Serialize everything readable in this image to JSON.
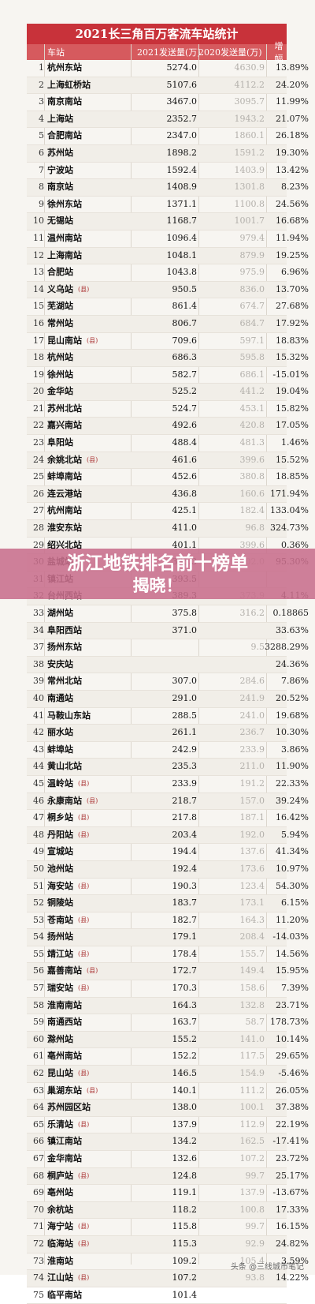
{
  "title": "2021长三角百万客流车站统计",
  "headers": [
    "车站",
    "2021发送量(万)",
    "2020发送量(万)",
    "增幅"
  ],
  "rows": [
    {
      "rank": "1",
      "name": "杭州东站",
      "tag": "",
      "v21": "5274.0",
      "v20": "4630.9",
      "g": "13.89%"
    },
    {
      "rank": "2",
      "name": "上海虹桥站",
      "tag": "",
      "v21": "5107.6",
      "v20": "4112.2",
      "g": "24.20%"
    },
    {
      "rank": "3",
      "name": "南京南站",
      "tag": "",
      "v21": "3467.0",
      "v20": "3095.7",
      "g": "11.99%"
    },
    {
      "rank": "4",
      "name": "上海站",
      "tag": "",
      "v21": "2352.7",
      "v20": "1943.2",
      "g": "21.07%"
    },
    {
      "rank": "5",
      "name": "合肥南站",
      "tag": "",
      "v21": "2347.0",
      "v20": "1860.1",
      "g": "26.18%"
    },
    {
      "rank": "6",
      "name": "苏州站",
      "tag": "",
      "v21": "1898.2",
      "v20": "1591.2",
      "g": "19.30%"
    },
    {
      "rank": "7",
      "name": "宁波站",
      "tag": "",
      "v21": "1592.4",
      "v20": "1403.9",
      "g": "13.42%"
    },
    {
      "rank": "8",
      "name": "南京站",
      "tag": "",
      "v21": "1408.9",
      "v20": "1301.8",
      "g": "8.23%"
    },
    {
      "rank": "9",
      "name": "徐州东站",
      "tag": "",
      "v21": "1371.1",
      "v20": "1100.8",
      "g": "24.56%"
    },
    {
      "rank": "10",
      "name": "无锡站",
      "tag": "",
      "v21": "1168.7",
      "v20": "1001.7",
      "g": "16.68%"
    },
    {
      "rank": "11",
      "name": "温州南站",
      "tag": "",
      "v21": "1096.4",
      "v20": "979.4",
      "g": "11.94%"
    },
    {
      "rank": "12",
      "name": "上海南站",
      "tag": "",
      "v21": "1048.1",
      "v20": "879.9",
      "g": "19.25%"
    },
    {
      "rank": "13",
      "name": "合肥站",
      "tag": "",
      "v21": "1043.8",
      "v20": "975.9",
      "g": "6.96%"
    },
    {
      "rank": "14",
      "name": "义乌站",
      "tag": "(县)",
      "v21": "950.5",
      "v20": "836.0",
      "g": "13.70%"
    },
    {
      "rank": "15",
      "name": "芜湖站",
      "tag": "",
      "v21": "861.4",
      "v20": "674.7",
      "g": "27.68%"
    },
    {
      "rank": "16",
      "name": "常州站",
      "tag": "",
      "v21": "806.7",
      "v20": "684.7",
      "g": "17.92%"
    },
    {
      "rank": "17",
      "name": "昆山南站",
      "tag": "(县)",
      "v21": "709.6",
      "v20": "597.1",
      "g": "18.83%"
    },
    {
      "rank": "18",
      "name": "杭州站",
      "tag": "",
      "v21": "686.3",
      "v20": "595.8",
      "g": "15.32%"
    },
    {
      "rank": "19",
      "name": "徐州站",
      "tag": "",
      "v21": "582.7",
      "v20": "686.1",
      "g": "-15.01%"
    },
    {
      "rank": "20",
      "name": "金华站",
      "tag": "",
      "v21": "525.2",
      "v20": "441.2",
      "g": "19.04%"
    },
    {
      "rank": "21",
      "name": "苏州北站",
      "tag": "",
      "v21": "524.7",
      "v20": "453.1",
      "g": "15.82%"
    },
    {
      "rank": "22",
      "name": "嘉兴南站",
      "tag": "",
      "v21": "492.6",
      "v20": "420.8",
      "g": "17.05%"
    },
    {
      "rank": "23",
      "name": "阜阳站",
      "tag": "",
      "v21": "488.4",
      "v20": "481.3",
      "g": "1.46%"
    },
    {
      "rank": "24",
      "name": "余姚北站",
      "tag": "(县)",
      "v21": "461.6",
      "v20": "399.6",
      "g": "15.52%"
    },
    {
      "rank": "25",
      "name": "蚌埠南站",
      "tag": "",
      "v21": "452.6",
      "v20": "380.8",
      "g": "18.85%"
    },
    {
      "rank": "26",
      "name": "连云港站",
      "tag": "",
      "v21": "436.8",
      "v20": "160.6",
      "g": "171.94%"
    },
    {
      "rank": "27",
      "name": "杭州南站",
      "tag": "",
      "v21": "425.1",
      "v20": "182.4",
      "g": "133.04%"
    },
    {
      "rank": "28",
      "name": "淮安东站",
      "tag": "",
      "v21": "411.0",
      "v20": "96.8",
      "g": "324.73%"
    },
    {
      "rank": "29",
      "name": "绍兴北站",
      "tag": "",
      "v21": "401.1",
      "v20": "399.6",
      "g": "0.36%"
    },
    {
      "rank": "30",
      "name": "盐城站",
      "tag": "",
      "v21": "395.3",
      "v20": "202.0",
      "g": "95.30%"
    },
    {
      "rank": "31",
      "name": "镇江站",
      "tag": "",
      "v21": "393.5",
      "v20": "",
      "g": ""
    },
    {
      "rank": "32",
      "name": "台州西站",
      "tag": "",
      "v21": "389.3",
      "v20": "373.9",
      "g": "4.11%"
    },
    {
      "rank": "33",
      "name": "湖州站",
      "tag": "",
      "v21": "375.8",
      "v20": "316.2",
      "g": "0.18865"
    },
    {
      "rank": "34",
      "name": "阜阳西站",
      "tag": "",
      "v21": "371.0",
      "v20": "",
      "g": "33.63%"
    },
    {
      "rank": "37",
      "name": "扬州东站",
      "tag": "",
      "v21": "",
      "v20": "9.5",
      "g": "3288.29%"
    },
    {
      "rank": "38",
      "name": "安庆站",
      "tag": "",
      "v21": "",
      "v20": "",
      "g": "24.36%"
    },
    {
      "rank": "39",
      "name": "常州北站",
      "tag": "",
      "v21": "307.0",
      "v20": "284.6",
      "g": "7.86%"
    },
    {
      "rank": "40",
      "name": "南通站",
      "tag": "",
      "v21": "291.0",
      "v20": "241.9",
      "g": "20.52%"
    },
    {
      "rank": "41",
      "name": "马鞍山东站",
      "tag": "",
      "v21": "288.5",
      "v20": "241.0",
      "g": "19.68%"
    },
    {
      "rank": "42",
      "name": "丽水站",
      "tag": "",
      "v21": "261.1",
      "v20": "236.7",
      "g": "10.30%"
    },
    {
      "rank": "43",
      "name": "蚌埠站",
      "tag": "",
      "v21": "242.9",
      "v20": "233.9",
      "g": "3.86%"
    },
    {
      "rank": "44",
      "name": "黄山北站",
      "tag": "",
      "v21": "235.3",
      "v20": "211.0",
      "g": "11.90%"
    },
    {
      "rank": "45",
      "name": "温岭站",
      "tag": "(县)",
      "v21": "233.9",
      "v20": "191.2",
      "g": "22.33%"
    },
    {
      "rank": "46",
      "name": "永康南站",
      "tag": "(县)",
      "v21": "218.7",
      "v20": "157.0",
      "g": "39.24%"
    },
    {
      "rank": "47",
      "name": "桐乡站",
      "tag": "(县)",
      "v21": "217.8",
      "v20": "187.1",
      "g": "16.42%"
    },
    {
      "rank": "48",
      "name": "丹阳站",
      "tag": "(县)",
      "v21": "203.4",
      "v20": "192.0",
      "g": "5.94%"
    },
    {
      "rank": "49",
      "name": "宣城站",
      "tag": "",
      "v21": "194.4",
      "v20": "137.6",
      "g": "41.34%"
    },
    {
      "rank": "50",
      "name": "池州站",
      "tag": "",
      "v21": "192.4",
      "v20": "173.6",
      "g": "10.97%"
    },
    {
      "rank": "51",
      "name": "海安站",
      "tag": "(县)",
      "v21": "190.3",
      "v20": "123.4",
      "g": "54.30%"
    },
    {
      "rank": "52",
      "name": "铜陵站",
      "tag": "",
      "v21": "183.7",
      "v20": "173.1",
      "g": "6.15%"
    },
    {
      "rank": "53",
      "name": "苍南站",
      "tag": "(县)",
      "v21": "182.7",
      "v20": "164.3",
      "g": "11.20%"
    },
    {
      "rank": "54",
      "name": "扬州站",
      "tag": "",
      "v21": "179.1",
      "v20": "208.4",
      "g": "-14.03%"
    },
    {
      "rank": "55",
      "name": "靖江站",
      "tag": "(县)",
      "v21": "178.4",
      "v20": "155.7",
      "g": "14.56%"
    },
    {
      "rank": "56",
      "name": "嘉善南站",
      "tag": "(县)",
      "v21": "172.7",
      "v20": "149.4",
      "g": "15.95%"
    },
    {
      "rank": "57",
      "name": "瑞安站",
      "tag": "(县)",
      "v21": "170.3",
      "v20": "158.6",
      "g": "7.39%"
    },
    {
      "rank": "58",
      "name": "淮南南站",
      "tag": "",
      "v21": "164.3",
      "v20": "132.8",
      "g": "23.71%"
    },
    {
      "rank": "59",
      "name": "南通西站",
      "tag": "",
      "v21": "163.7",
      "v20": "58.7",
      "g": "178.73%"
    },
    {
      "rank": "60",
      "name": "滁州站",
      "tag": "",
      "v21": "155.2",
      "v20": "141.0",
      "g": "10.14%"
    },
    {
      "rank": "61",
      "name": "亳州南站",
      "tag": "",
      "v21": "152.2",
      "v20": "117.5",
      "g": "29.65%"
    },
    {
      "rank": "62",
      "name": "昆山站",
      "tag": "(县)",
      "v21": "146.5",
      "v20": "154.9",
      "g": "-5.46%"
    },
    {
      "rank": "63",
      "name": "巢湖东站",
      "tag": "(县)",
      "v21": "140.1",
      "v20": "111.2",
      "g": "26.05%"
    },
    {
      "rank": "64",
      "name": "苏州园区站",
      "tag": "",
      "v21": "138.0",
      "v20": "100.1",
      "g": "37.38%"
    },
    {
      "rank": "65",
      "name": "乐清站",
      "tag": "(县)",
      "v21": "137.9",
      "v20": "112.9",
      "g": "22.19%"
    },
    {
      "rank": "66",
      "name": "镇江南站",
      "tag": "",
      "v21": "134.2",
      "v20": "162.5",
      "g": "-17.41%"
    },
    {
      "rank": "67",
      "name": "金华南站",
      "tag": "",
      "v21": "132.6",
      "v20": "107.2",
      "g": "23.72%"
    },
    {
      "rank": "68",
      "name": "桐庐站",
      "tag": "(县)",
      "v21": "124.8",
      "v20": "99.7",
      "g": "25.17%"
    },
    {
      "rank": "69",
      "name": "亳州站",
      "tag": "",
      "v21": "119.1",
      "v20": "137.9",
      "g": "-13.67%"
    },
    {
      "rank": "70",
      "name": "余杭站",
      "tag": "",
      "v21": "118.2",
      "v20": "100.8",
      "g": "17.33%"
    },
    {
      "rank": "71",
      "name": "海宁站",
      "tag": "(县)",
      "v21": "115.8",
      "v20": "99.7",
      "g": "16.15%"
    },
    {
      "rank": "72",
      "name": "临海站",
      "tag": "(县)",
      "v21": "115.3",
      "v20": "92.9",
      "g": "24.82%"
    },
    {
      "rank": "73",
      "name": "淮南站",
      "tag": "",
      "v21": "109.2",
      "v20": "105.4",
      "g": "3.59%"
    },
    {
      "rank": "74",
      "name": "江山站",
      "tag": "(县)",
      "v21": "107.2",
      "v20": "93.8",
      "g": "14.22%"
    },
    {
      "rank": "75",
      "name": "临平南站",
      "tag": "",
      "v21": "101.4",
      "v20": "",
      "g": ""
    }
  ],
  "banner": {
    "line1": "浙江地铁排名前十榜单",
    "line2": "揭晓！"
  },
  "watermark": "头条 @三线城市笔记"
}
